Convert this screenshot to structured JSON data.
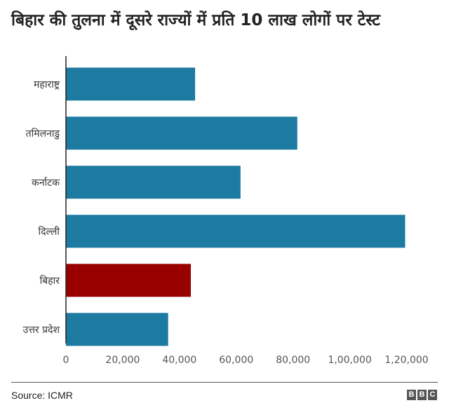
{
  "chart_data": {
    "type": "bar",
    "orientation": "horizontal",
    "title": "बिहार की तुलना में दूसरे राज्यों में प्रति 10 लाख लोगों पर टेस्ट",
    "categories": [
      "महाराष्ट्र",
      "तमिलनाडु",
      "कर्नाटक",
      "दिल्ली",
      "बिहार",
      "उत्तर प्रदेश"
    ],
    "values": [
      45500,
      81500,
      61500,
      119500,
      44000,
      36000
    ],
    "bar_colors": [
      "#1d7aa0",
      "#1d7aa0",
      "#1d7aa0",
      "#1d7aa0",
      "#990000",
      "#1d7aa0"
    ],
    "x_ticks": [
      0,
      20000,
      40000,
      60000,
      80000,
      100000,
      120000
    ],
    "x_tick_labels": [
      "0",
      "20,000",
      "40,000",
      "60,000",
      "80,000",
      "1,00,000",
      "1,20,000"
    ],
    "xlim": [
      0,
      130000
    ],
    "grid": false,
    "legend": "none"
  },
  "footer": {
    "source": "Source:  ICMR",
    "logo_letters": [
      "B",
      "B",
      "C"
    ]
  }
}
